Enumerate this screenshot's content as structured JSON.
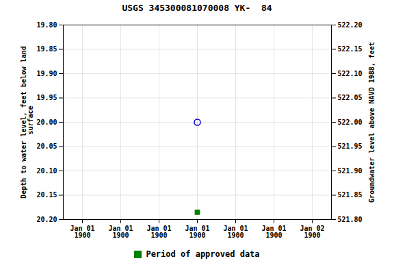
{
  "chart_data": {
    "type": "scatter",
    "title": "USGS 345300081070008 YK-  84",
    "ylabel": "Depth to water level, feet below land\n surface",
    "y2label": "Groundwater level above NAVD 1988, feet",
    "categories": [
      "Jan 01\n1900",
      "Jan 01\n1900",
      "Jan 01\n1900",
      "Jan 01\n1900",
      "Jan 01\n1900",
      "Jan 01\n1900",
      "Jan 02\n1900"
    ],
    "series": [
      {
        "color": "#0000cc",
        "marker": "open_circle",
        "values": [
          null,
          null,
          null,
          20.0,
          null,
          null,
          null
        ]
      },
      {
        "name": "Period of approved data",
        "color": "#008000",
        "marker": "square",
        "values": [
          null,
          null,
          null,
          20.185,
          null,
          null,
          null
        ]
      }
    ],
    "ylim": [
      20.2,
      19.8
    ],
    "yticks": [
      {
        "value": 19.8,
        "label": "19.80"
      },
      {
        "value": 19.85,
        "label": "19.85"
      },
      {
        "value": 19.9,
        "label": "19.90"
      },
      {
        "value": 19.95,
        "label": "19.95"
      },
      {
        "value": 20.0,
        "label": "20.00"
      },
      {
        "value": 20.05,
        "label": "20.05"
      },
      {
        "value": 20.1,
        "label": "20.10"
      },
      {
        "value": 20.15,
        "label": "20.15"
      },
      {
        "value": 20.2,
        "label": "20.20"
      }
    ],
    "y2lim": [
      521.8,
      522.2
    ],
    "y2ticks": [
      {
        "value": 521.8,
        "label": "521.80"
      },
      {
        "value": 521.85,
        "label": "521.85"
      },
      {
        "value": 521.9,
        "label": "521.90"
      },
      {
        "value": 521.95,
        "label": "521.95"
      },
      {
        "value": 522.0,
        "label": "522.00"
      },
      {
        "value": 522.05,
        "label": "522.05"
      },
      {
        "value": 522.1,
        "label": "522.10"
      },
      {
        "value": 522.15,
        "label": "522.15"
      },
      {
        "value": 522.2,
        "label": "522.20"
      }
    ],
    "grid": true,
    "legend": "bottom"
  }
}
